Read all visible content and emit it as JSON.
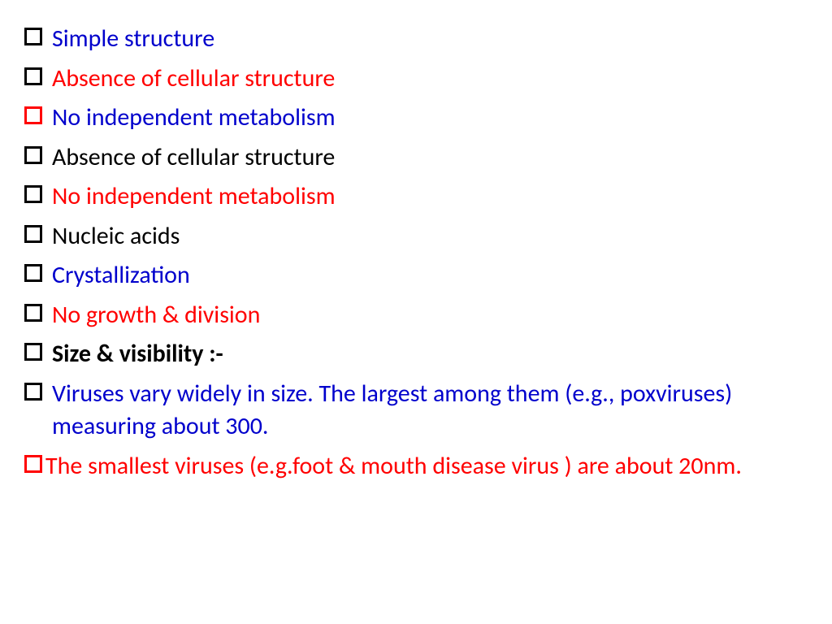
{
  "colors": {
    "blue": "#0000cc",
    "red": "#ff0000",
    "black": "#000000"
  },
  "items": [
    {
      "text": "Simple structure",
      "text_color": "blue",
      "bullet_color": "black",
      "bold": false
    },
    {
      "text": "Absence of cellular structure",
      "text_color": "red",
      "bullet_color": "black",
      "bold": false
    },
    {
      "text": "No independent metabolism",
      "text_color": "blue",
      "bullet_color": "red",
      "bold": false
    },
    {
      "text": "Absence of cellular structure",
      "text_color": "black",
      "bullet_color": "black",
      "bold": false
    },
    {
      "text": "No independent metabolism",
      "text_color": "red",
      "bullet_color": "black",
      "bold": false
    },
    {
      "text": "Nucleic acids",
      "text_color": "black",
      "bullet_color": "black",
      "bold": false
    },
    {
      "text": "Crystallization",
      "text_color": "blue",
      "bullet_color": "black",
      "bold": false
    },
    {
      "text": "No growth & division",
      "text_color": "red",
      "bullet_color": "black",
      "bold": false
    },
    {
      "text": "Size & visibility :-",
      "text_color": "black",
      "bullet_color": "black",
      "bold": true
    },
    {
      "text": "Viruses vary widely in size. The largest among them (e.g., poxviruses) measuring about 300.",
      "text_color": "blue",
      "bullet_color": "black",
      "bold": false,
      "wrap": true
    },
    {
      "text": "The smallest viruses (e.g.foot & mouth disease virus ) are about 20nm.",
      "text_color": "red",
      "bullet_color": "red",
      "bold": false,
      "wrap": true,
      "tight": true
    }
  ]
}
